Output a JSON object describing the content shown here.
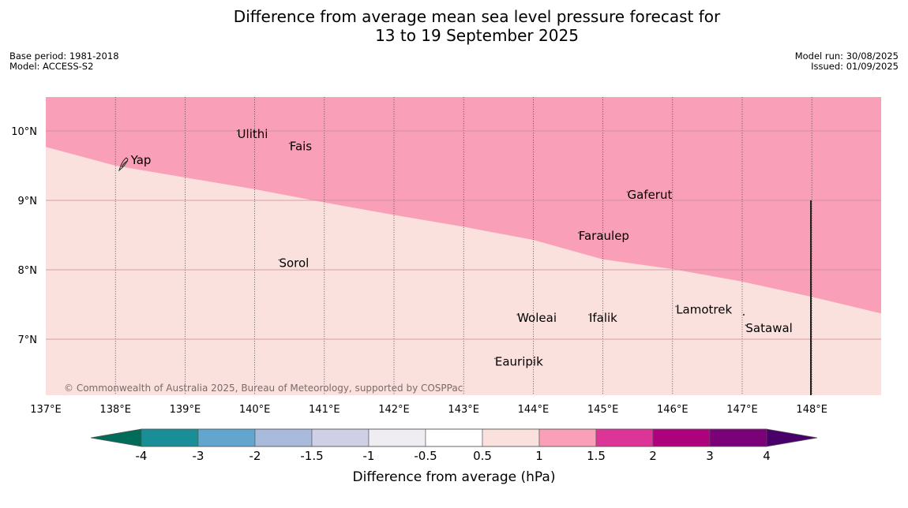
{
  "title": {
    "line1": "Difference from average mean sea level pressure forecast for",
    "line2": "13 to 19 September 2025"
  },
  "meta_left": {
    "base_period": "Base period: 1981-2018",
    "model": "Model: ACCESS-S2"
  },
  "meta_right": {
    "model_run": "Model run: 30/08/2025",
    "issued": "Issued: 01/09/2025"
  },
  "map": {
    "extent": {
      "lon": [
        137,
        149
      ],
      "lat": [
        6.2,
        10.5
      ]
    },
    "lon_labels": [
      "137°E",
      "138°E",
      "139°E",
      "140°E",
      "141°E",
      "142°E",
      "143°E",
      "144°E",
      "145°E",
      "146°E",
      "147°E",
      "148°E"
    ],
    "lat_labels": [
      "10°N",
      "9°N",
      "8°N",
      "7°N"
    ],
    "zones": [
      {
        "range": "1 to 1.5",
        "color": "#f9a0b8",
        "area": "north"
      },
      {
        "range": "0.5 to 1",
        "color": "#fbe1de",
        "area": "south"
      }
    ],
    "boundary": [
      {
        "lon": 137.0,
        "lat": 9.77
      },
      {
        "lon": 138.0,
        "lat": 9.5
      },
      {
        "lon": 139.0,
        "lat": 9.33
      },
      {
        "lon": 140.0,
        "lat": 9.16
      },
      {
        "lon": 141.0,
        "lat": 8.97
      },
      {
        "lon": 142.0,
        "lat": 8.79
      },
      {
        "lon": 143.0,
        "lat": 8.62
      },
      {
        "lon": 144.0,
        "lat": 8.43
      },
      {
        "lon": 145.0,
        "lat": 8.15
      },
      {
        "lon": 146.0,
        "lat": 8.01
      },
      {
        "lon": 147.0,
        "lat": 7.83
      },
      {
        "lon": 148.0,
        "lat": 7.61
      },
      {
        "lon": 149.0,
        "lat": 7.37
      }
    ],
    "places": [
      {
        "name": "Yap",
        "lon": 138.22,
        "lat": 9.52
      },
      {
        "name": "Ulithi",
        "lon": 139.75,
        "lat": 9.9
      },
      {
        "name": "Fais",
        "lon": 140.5,
        "lat": 9.72
      },
      {
        "name": "Gaferut",
        "lon": 145.35,
        "lat": 9.02
      },
      {
        "name": "Faraulep",
        "lon": 144.65,
        "lat": 8.43
      },
      {
        "name": "Sorol",
        "lon": 140.35,
        "lat": 8.04
      },
      {
        "name": "Lamotrek",
        "lon": 146.05,
        "lat": 7.37
      },
      {
        "name": "Woleai",
        "lon": 143.77,
        "lat": 7.25
      },
      {
        "name": "Ifalik",
        "lon": 144.8,
        "lat": 7.25
      },
      {
        "name": "Satawal",
        "lon": 147.05,
        "lat": 7.1
      },
      {
        "name": "Eauripik",
        "lon": 143.45,
        "lat": 6.62
      }
    ],
    "copyright": "© Commonwealth of Australia 2025, Bureau of Meteorology, supported by COSPPac"
  },
  "colorbar": {
    "label": "Difference from average (hPa)",
    "ticks": [
      "-4",
      "-3",
      "-2",
      "-1.5",
      "-1",
      "-0.5",
      "0.5",
      "1",
      "1.5",
      "2",
      "3",
      "4"
    ],
    "colors": [
      "#1a8e96",
      "#62a6cf",
      "#a8bbdc",
      "#cfd0e6",
      "#efecf2",
      "#ffffff",
      "#fbe1de",
      "#f9a0b8",
      "#dd3497",
      "#ae017e",
      "#7a0177"
    ],
    "under_color": "#016c59",
    "over_color": "#49006a"
  }
}
